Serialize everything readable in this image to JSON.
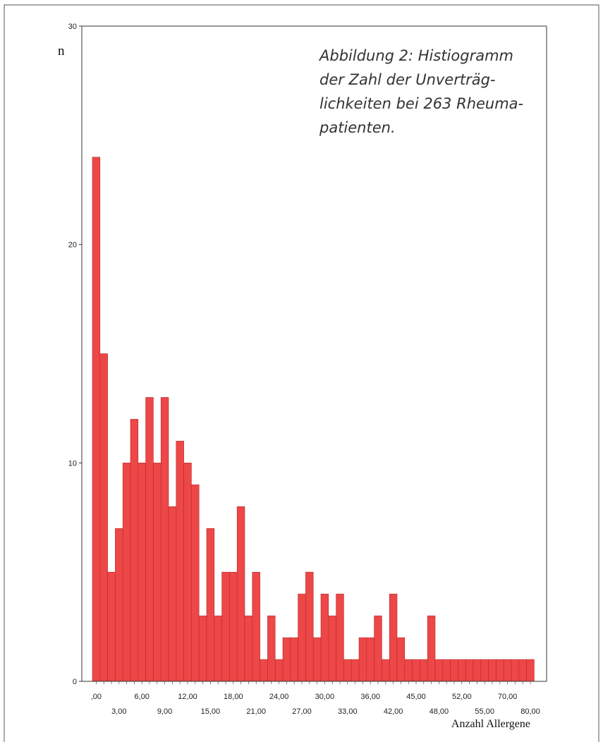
{
  "chart_data": {
    "type": "bar",
    "title": "Abbildung 2: Histiogramm der Zahl der Unverträg-lichkeiten bei 263 Rheuma-patienten.",
    "title_lines": [
      "Abbildung 2: Histiogramm",
      "der Zahl der Unverträg-",
      "lichkeiten bei 263 Rheuma-",
      "patienten."
    ],
    "ylabel": "n",
    "xlabel": "Anzahl Allergene",
    "ylim": [
      0,
      30
    ],
    "y_ticks": [
      "0",
      "10",
      "20",
      "30"
    ],
    "x_tick_labels_row1": [
      ",00",
      "6,00",
      "12,00",
      "18,00",
      "24,00",
      "30,00",
      "36,00",
      "42,00",
      "48,00",
      "55,00",
      "80,00"
    ],
    "x_tick_labels_row2": [
      "3,00",
      "9,00",
      "15,00",
      "21,00",
      "27,00",
      "33,00",
      "42,00",
      "48,00",
      "55,00",
      "80,00"
    ],
    "x_tick_labels_top": [
      ",00",
      "6,00",
      "12,00",
      "18,00",
      "24,00",
      "30,00",
      "36,00",
      "45,00",
      "52,00",
      "70,00"
    ],
    "x_tick_labels_bottom": [
      "3,00",
      "9,00",
      "15,00",
      "21,00",
      "27,00",
      "33,00",
      "42,00",
      "48,00",
      "55,00",
      "80,00"
    ],
    "values": [
      24,
      15,
      5,
      7,
      10,
      12,
      10,
      13,
      10,
      13,
      8,
      11,
      10,
      9,
      3,
      7,
      3,
      5,
      5,
      8,
      3,
      5,
      1,
      3,
      1,
      2,
      2,
      4,
      5,
      2,
      4,
      3,
      4,
      1,
      1,
      2,
      2,
      3,
      1,
      4,
      2,
      1,
      1,
      1,
      3,
      1,
      1,
      1,
      1,
      1,
      1,
      1,
      1,
      1,
      1,
      1,
      1,
      1
    ],
    "bar_color": "#ee4747",
    "grid": false
  }
}
